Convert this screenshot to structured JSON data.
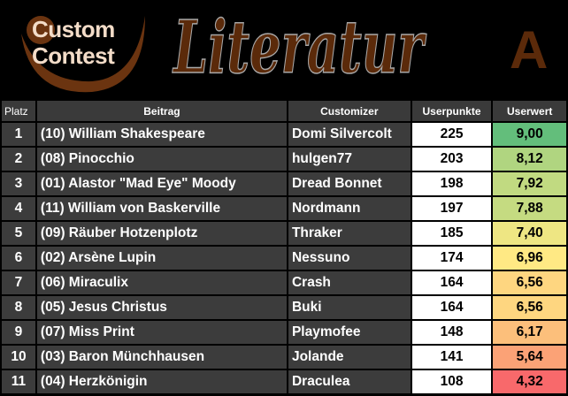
{
  "header": {
    "logo_line1": "Custom",
    "logo_line2": "Contest",
    "title": "Literatur",
    "group": "A"
  },
  "columns": {
    "rank": "Platz",
    "entry": "Beitrag",
    "customizer": "Customizer",
    "points": "Userpunkte",
    "value": "Userwert"
  },
  "rows": [
    {
      "rank": "1",
      "entry": "(10) William Shakespeare",
      "customizer": "Domi Silvercolt",
      "points": "225",
      "value": "9,00",
      "color": "#63be7b"
    },
    {
      "rank": "2",
      "entry": "(08) Pinocchio",
      "customizer": "hulgen77",
      "points": "203",
      "value": "8,12",
      "color": "#b0d580"
    },
    {
      "rank": "3",
      "entry": "(01) Alastor \"Mad Eye\" Moody",
      "customizer": "Dread Bonnet",
      "points": "198",
      "value": "7,92",
      "color": "#c1da81"
    },
    {
      "rank": "4",
      "entry": "(11) William von Baskerville",
      "customizer": "Nordmann",
      "points": "197",
      "value": "7,88",
      "color": "#c5db81"
    },
    {
      "rank": "5",
      "entry": "(09) Räuber Hotzenplotz",
      "customizer": "Thraker",
      "points": "185",
      "value": "7,40",
      "color": "#eee683"
    },
    {
      "rank": "6",
      "entry": "(02) Arsène Lupin",
      "customizer": "Nessuno",
      "points": "174",
      "value": "6,96",
      "color": "#ffe984"
    },
    {
      "rank": "7",
      "entry": "(06) Miraculix",
      "customizer": "Crash",
      "points": "164",
      "value": "6,56",
      "color": "#fed680"
    },
    {
      "rank": "8",
      "entry": "(05) Jesus Christus",
      "customizer": "Buki",
      "points": "164",
      "value": "6,56",
      "color": "#fed680"
    },
    {
      "rank": "9",
      "entry": "(07) Miss Print",
      "customizer": "Playmofee",
      "points": "148",
      "value": "6,17",
      "color": "#fcbf7b"
    },
    {
      "rank": "10",
      "entry": "(03) Baron Münchhausen",
      "customizer": "Jolande",
      "points": "141",
      "value": "5,64",
      "color": "#fba276"
    },
    {
      "rank": "11",
      "entry": "(04) Herzkönigin",
      "customizer": "Draculea",
      "points": "108",
      "value": "4,32",
      "color": "#f8696b"
    }
  ]
}
